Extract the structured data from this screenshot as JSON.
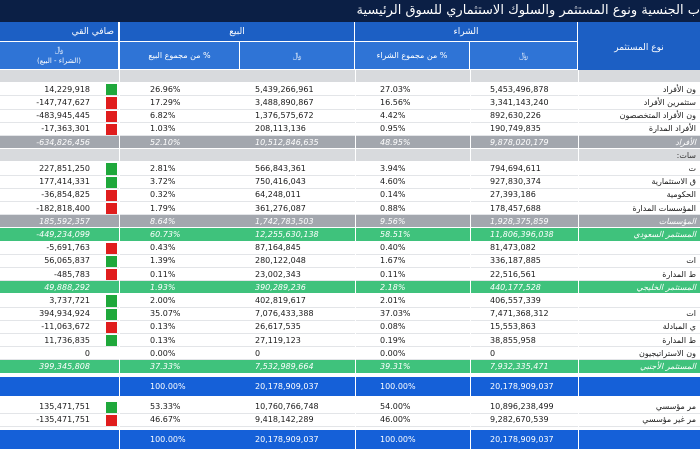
{
  "title": "ب الجنسية ونوع المستثمر والسلوك الاستثماري للسوق الرئيسية",
  "header": {
    "investor_type": "نوع المستثمر",
    "buy": "الشراء",
    "sell": "البيع",
    "net": "صافي القي",
    "buy_value": "﷼",
    "buy_pct": "% من مجموع الشراء",
    "sell_value": "﷼",
    "sell_pct": "% من مجموع البيع",
    "net_value": "﷼",
    "net_formula": "(الشراء - البيع)"
  },
  "table": {
    "rows": [
      {
        "style": "section"
      },
      {
        "style": "normal",
        "label": "ون الأفراد",
        "buy_value": "5,453,496,878",
        "buy_pct": "27.03%",
        "sell_value": "5,439,266,961",
        "sell_pct": "26.96%",
        "net": "14,229,918"
      },
      {
        "style": "normal",
        "label": "ستثمرين الأفراد",
        "buy_value": "3,341,143,240",
        "buy_pct": "16.56%",
        "sell_value": "3,488,890,867",
        "sell_pct": "17.29%",
        "net": "-147,747,627"
      },
      {
        "style": "normal",
        "label": "ون الأفراد المتخصصون",
        "buy_value": "892,630,226",
        "buy_pct": "4.42%",
        "sell_value": "1,376,575,672",
        "sell_pct": "6.82%",
        "net": "-483,945,445"
      },
      {
        "style": "normal",
        "label": "الأفراد المدارة",
        "buy_value": "190,749,835",
        "buy_pct": "0.95%",
        "sell_value": "208,113,136",
        "sell_pct": "1.03%",
        "net": "-17,363,301"
      },
      {
        "style": "subtotal",
        "label": "الأفراد",
        "buy_value": "9,878,020,179",
        "buy_pct": "48.95%",
        "sell_value": "10,512,846,635",
        "sell_pct": "52.10%",
        "net": "-634,826,456"
      },
      {
        "style": "section",
        "label": "سات:"
      },
      {
        "style": "normal",
        "label": "ت",
        "buy_value": "794,694,611",
        "buy_pct": "3.94%",
        "sell_value": "566,843,361",
        "sell_pct": "2.81%",
        "net": "227,851,250"
      },
      {
        "style": "normal",
        "label": "ق الاستثمارية",
        "buy_value": "927,830,374",
        "buy_pct": "4.60%",
        "sell_value": "750,416,043",
        "sell_pct": "3.72%",
        "net": "177,414,331"
      },
      {
        "style": "normal",
        "label": "الحكومية",
        "buy_value": "27,393,186",
        "buy_pct": "0.14%",
        "sell_value": "64,248,011",
        "sell_pct": "0.32%",
        "net": "-36,854,825"
      },
      {
        "style": "normal",
        "label": "المؤسسات المدارة",
        "buy_value": "178,457,688",
        "buy_pct": "0.88%",
        "sell_value": "361,276,087",
        "sell_pct": "1.79%",
        "net": "-182,818,400"
      },
      {
        "style": "subtotal",
        "label": "المؤسسات",
        "buy_value": "1,928,375,859",
        "buy_pct": "9.56%",
        "sell_value": "1,742,783,503",
        "sell_pct": "8.64%",
        "net": "185,592,357"
      },
      {
        "style": "total",
        "label": "المستثمر السعودي",
        "buy_value": "11,806,396,038",
        "buy_pct": "58.51%",
        "sell_value": "12,255,630,138",
        "sell_pct": "60.73%",
        "net": "-449,234,099"
      },
      {
        "style": "normal",
        "buy_value": "81,473,082",
        "buy_pct": "0.40%",
        "sell_value": "87,164,845",
        "sell_pct": "0.43%",
        "net": "-5,691,763"
      },
      {
        "style": "normal",
        "label": "ات",
        "buy_value": "336,187,885",
        "buy_pct": "1.67%",
        "sell_value": "280,122,048",
        "sell_pct": "1.39%",
        "net": "56,065,837"
      },
      {
        "style": "normal",
        "label": "ط المدارة",
        "buy_value": "22,516,561",
        "buy_pct": "0.11%",
        "sell_value": "23,002,343",
        "sell_pct": "0.11%",
        "net": "-485,783"
      },
      {
        "style": "total",
        "label": "المستثمر الخليجي",
        "buy_value": "440,177,528",
        "buy_pct": "2.18%",
        "sell_value": "390,289,236",
        "sell_pct": "1.93%",
        "net": "49,888,292"
      },
      {
        "style": "normal",
        "buy_value": "406,557,339",
        "buy_pct": "2.01%",
        "sell_value": "402,819,617",
        "sell_pct": "2.00%",
        "net": "3,737,721"
      },
      {
        "style": "normal",
        "label": "ات",
        "buy_value": "7,471,368,312",
        "buy_pct": "37.03%",
        "sell_value": "7,076,433,388",
        "sell_pct": "35.07%",
        "net": "394,934,924"
      },
      {
        "style": "normal",
        "label": "ي المبادلة",
        "buy_value": "15,553,863",
        "buy_pct": "0.08%",
        "sell_value": "26,617,535",
        "sell_pct": "0.13%",
        "net": "-11,063,672"
      },
      {
        "style": "normal",
        "label": "ط المدارة",
        "buy_value": "38,855,958",
        "buy_pct": "0.19%",
        "sell_value": "27,119,123",
        "sell_pct": "0.13%",
        "net": "11,736,835"
      },
      {
        "style": "normal",
        "label": "ون الاستراتيجيون",
        "buy_value": "0",
        "buy_pct": "0.00%",
        "sell_value": "0",
        "sell_pct": "0.00%",
        "net": "0"
      },
      {
        "style": "total",
        "label": "المستثمر الأجنبي",
        "buy_value": "7,932,335,471",
        "buy_pct": "39.31%",
        "sell_value": "7,532,989,664",
        "sell_pct": "37.33%",
        "net": "399,345,808"
      },
      {
        "style": "grand",
        "buy_value": "20,178,909,037",
        "buy_pct": "100.00%",
        "sell_value": "20,178,909,037",
        "sell_pct": "100.00%"
      },
      {
        "style": "normal",
        "label": "مر مؤسسي",
        "buy_value": "10,896,238,499",
        "buy_pct": "54.00%",
        "sell_value": "10,760,766,748",
        "sell_pct": "53.33%",
        "net": "135,471,751"
      },
      {
        "style": "normal",
        "label": "مر غير مؤسسي",
        "buy_value": "9,282,670,539",
        "buy_pct": "46.00%",
        "sell_value": "9,418,142,289",
        "sell_pct": "46.67%",
        "net": "-135,471,751"
      },
      {
        "style": "grand",
        "buy_value": "20,178,909,037",
        "buy_pct": "100.00%",
        "sell_value": "20,178,909,037",
        "sell_pct": "100.00%"
      }
    ]
  }
}
